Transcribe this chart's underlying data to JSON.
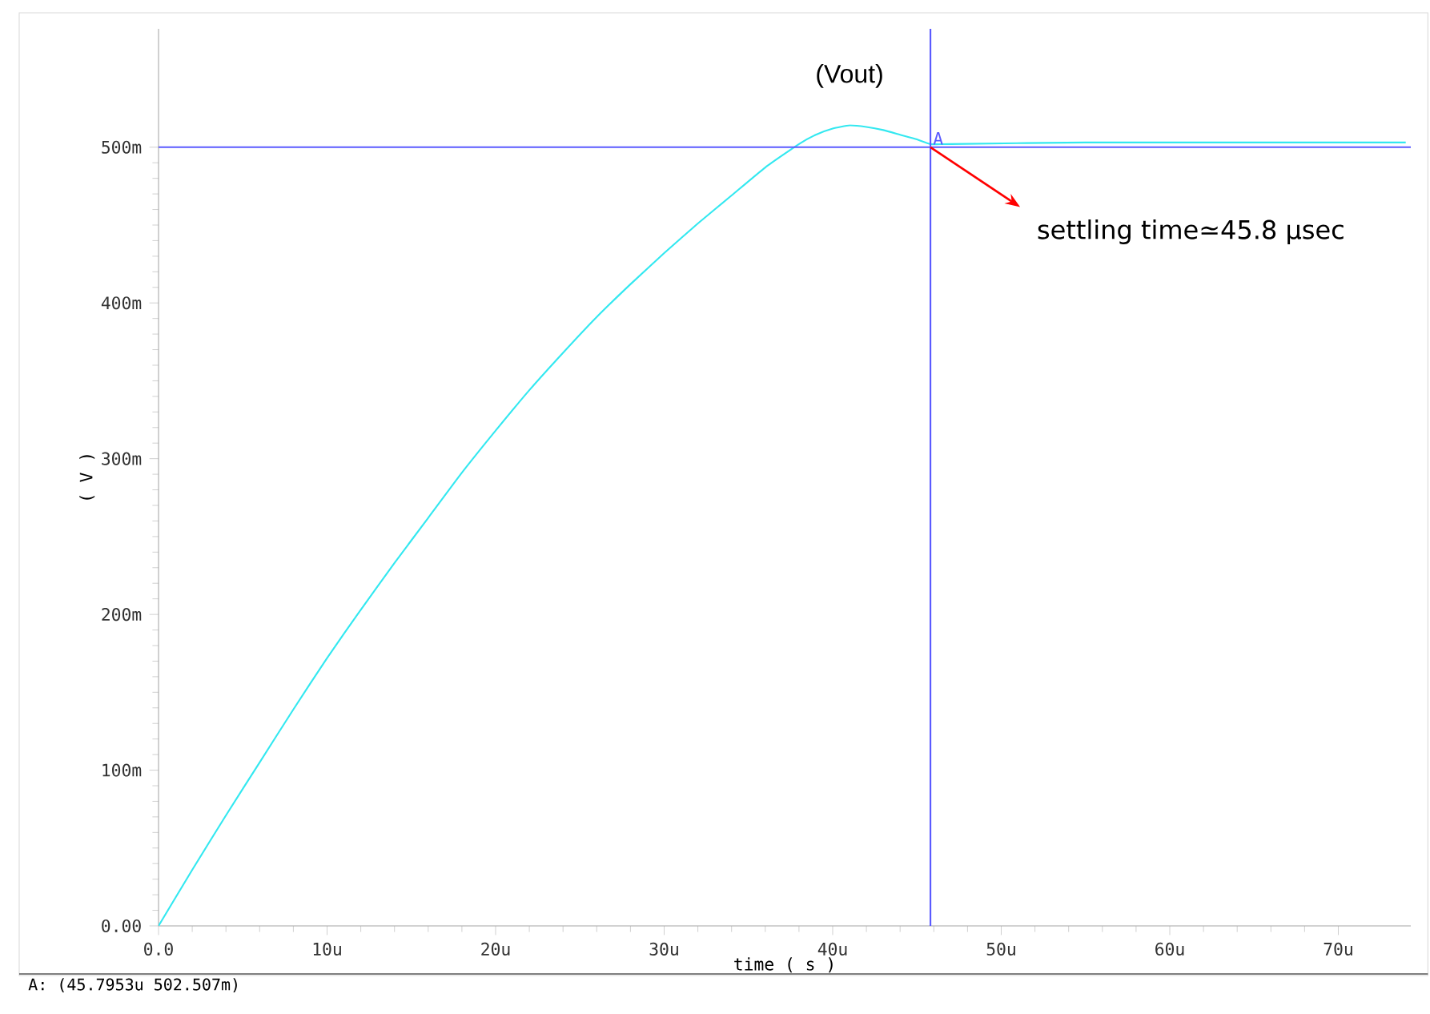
{
  "chart_data": {
    "type": "line",
    "xlabel": "time ( s )",
    "ylabel": "( V )",
    "x": [
      0,
      2,
      4,
      6,
      8,
      10,
      12,
      14,
      16,
      18,
      20,
      22,
      24,
      26,
      28,
      30,
      32,
      34,
      36,
      38,
      39,
      40,
      41,
      42,
      43,
      44,
      45,
      45.8,
      47,
      55,
      74
    ],
    "series": [
      {
        "name": "(Vout)",
        "color": "#33e8f0",
        "values": [
          0,
          36,
          71,
          105,
          139,
          172,
          203,
          233,
          262,
          291,
          318,
          344,
          368,
          391,
          412,
          432,
          451,
          469,
          487,
          502,
          508,
          512,
          514,
          513,
          511,
          508,
          505,
          502,
          502,
          503,
          503
        ]
      }
    ],
    "xlim": [
      0,
      74.3
    ],
    "ylim": [
      0,
      576
    ],
    "xticks": [
      {
        "value": 0,
        "label": "0.0"
      },
      {
        "value": 10,
        "label": "10u"
      },
      {
        "value": 20,
        "label": "20u"
      },
      {
        "value": 30,
        "label": "30u"
      },
      {
        "value": 40,
        "label": "40u"
      },
      {
        "value": 50,
        "label": "50u"
      },
      {
        "value": 60,
        "label": "60u"
      },
      {
        "value": 70,
        "label": "70u"
      }
    ],
    "yticks": [
      {
        "value": 0,
        "label": "0.00"
      },
      {
        "value": 100,
        "label": "100m"
      },
      {
        "value": 200,
        "label": "200m"
      },
      {
        "value": 300,
        "label": "300m"
      },
      {
        "value": 400,
        "label": "400m"
      },
      {
        "value": 500,
        "label": "500m"
      }
    ],
    "ref_lines": [
      {
        "axis": "y",
        "value": 500,
        "color": "#5a5aff"
      },
      {
        "axis": "x",
        "value": 45.8,
        "label": "A",
        "color": "#5a5aff"
      }
    ],
    "annotations": [
      {
        "text": "settling time≃45.8 µsec",
        "x": 45.8,
        "y": 500
      },
      "A: (45.7953u 502.507m)"
    ],
    "grid": false,
    "legend": false,
    "marker": "none",
    "line_style": "solid"
  }
}
